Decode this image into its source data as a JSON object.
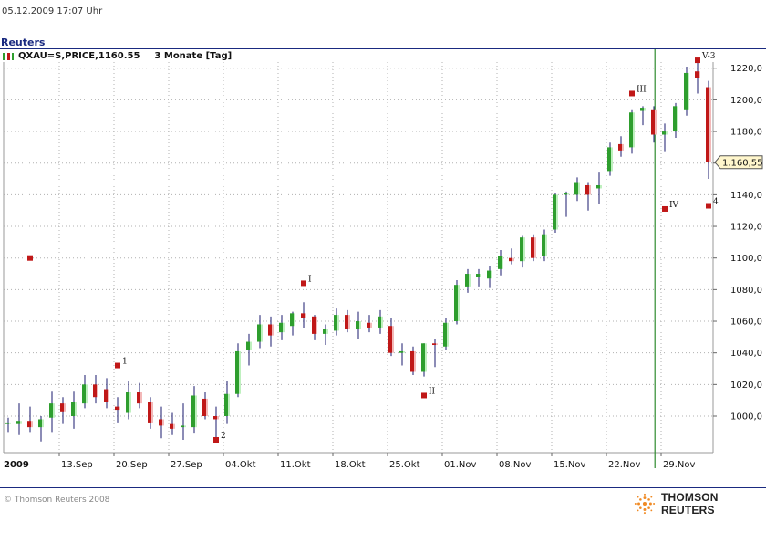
{
  "header": {
    "datetime": "05.12.2009   17:07 Uhr",
    "brand": "Reuters",
    "instrument": "QXAU=S,PRICE,1160.55",
    "period": "3 Monate [Tag]"
  },
  "footer": {
    "copyright": "© Thomson Reuters 2008",
    "logo_text": "THOMSON REUTERS"
  },
  "colors": {
    "up": "#2e9e2e",
    "down": "#c01818",
    "marker": "#c01818",
    "grid": "#b0b0b0",
    "vline": "#2e8b2e",
    "last_label_bg": "#fff6cc"
  },
  "chart_data": {
    "type": "candlestick",
    "title": "",
    "xlabel": "",
    "ylabel": "",
    "ylim": [
      982,
      1230
    ],
    "yticks": [
      1000,
      1020,
      1040,
      1060,
      1080,
      1100,
      1120,
      1140,
      1160,
      1180,
      1200,
      1220
    ],
    "ytick_labels": [
      "1000,0",
      "1020,0",
      "1040,0",
      "1060,0",
      "1080,0",
      "1100,0",
      "1120,0",
      "1140,0",
      "1160,0",
      "1180,0",
      "1200,0",
      "1220,0"
    ],
    "year_label": "2009",
    "x_labels": [
      {
        "label": "13.Sep",
        "i": 5
      },
      {
        "label": "20.Sep",
        "i": 10
      },
      {
        "label": "27.Sep",
        "i": 15
      },
      {
        "label": "04.Okt",
        "i": 20
      },
      {
        "label": "11.Okt",
        "i": 25
      },
      {
        "label": "18.Okt",
        "i": 30
      },
      {
        "label": "25.Okt",
        "i": 35
      },
      {
        "label": "01.Nov",
        "i": 40
      },
      {
        "label": "08.Nov",
        "i": 45
      },
      {
        "label": "15.Nov",
        "i": 50
      },
      {
        "label": "22.Nov",
        "i": 55
      },
      {
        "label": "29.Nov",
        "i": 60
      }
    ],
    "candles": [
      {
        "o": 995,
        "h": 999,
        "l": 990,
        "c": 996
      },
      {
        "o": 995,
        "h": 1008,
        "l": 988,
        "c": 997
      },
      {
        "o": 997,
        "h": 1006,
        "l": 990,
        "c": 993
      },
      {
        "o": 993,
        "h": 1000,
        "l": 984,
        "c": 998
      },
      {
        "o": 999,
        "h": 1016,
        "l": 990,
        "c": 1008
      },
      {
        "o": 1008,
        "h": 1012,
        "l": 995,
        "c": 1003
      },
      {
        "o": 1000,
        "h": 1016,
        "l": 992,
        "c": 1009
      },
      {
        "o": 1008,
        "h": 1026,
        "l": 1005,
        "c": 1020
      },
      {
        "o": 1020,
        "h": 1026,
        "l": 1008,
        "c": 1012
      },
      {
        "o": 1017,
        "h": 1024,
        "l": 1005,
        "c": 1009
      },
      {
        "o": 1006,
        "h": 1012,
        "l": 996,
        "c": 1004
      },
      {
        "o": 1002,
        "h": 1022,
        "l": 998,
        "c": 1015
      },
      {
        "o": 1015,
        "h": 1021,
        "l": 1005,
        "c": 1008
      },
      {
        "o": 1009,
        "h": 1012,
        "l": 992,
        "c": 996
      },
      {
        "o": 998,
        "h": 1006,
        "l": 986,
        "c": 994
      },
      {
        "o": 995,
        "h": 1002,
        "l": 988,
        "c": 992
      },
      {
        "o": 993,
        "h": 1008,
        "l": 985,
        "c": 994
      },
      {
        "o": 993,
        "h": 1019,
        "l": 989,
        "c": 1013
      },
      {
        "o": 1011,
        "h": 1015,
        "l": 998,
        "c": 1000
      },
      {
        "o": 1000,
        "h": 1006,
        "l": 984,
        "c": 998
      },
      {
        "o": 1000,
        "h": 1022,
        "l": 995,
        "c": 1014
      },
      {
        "o": 1014,
        "h": 1046,
        "l": 1012,
        "c": 1041
      },
      {
        "o": 1042,
        "h": 1052,
        "l": 1032,
        "c": 1047
      },
      {
        "o": 1047,
        "h": 1064,
        "l": 1043,
        "c": 1058
      },
      {
        "o": 1058,
        "h": 1063,
        "l": 1044,
        "c": 1051
      },
      {
        "o": 1053,
        "h": 1064,
        "l": 1048,
        "c": 1059
      },
      {
        "o": 1057,
        "h": 1066,
        "l": 1051,
        "c": 1065
      },
      {
        "o": 1065,
        "h": 1072,
        "l": 1056,
        "c": 1062
      },
      {
        "o": 1063,
        "h": 1064,
        "l": 1048,
        "c": 1052
      },
      {
        "o": 1052,
        "h": 1058,
        "l": 1045,
        "c": 1055
      },
      {
        "o": 1054,
        "h": 1068,
        "l": 1051,
        "c": 1064
      },
      {
        "o": 1064,
        "h": 1067,
        "l": 1053,
        "c": 1055
      },
      {
        "o": 1055,
        "h": 1066,
        "l": 1049,
        "c": 1060
      },
      {
        "o": 1059,
        "h": 1064,
        "l": 1053,
        "c": 1056
      },
      {
        "o": 1056,
        "h": 1067,
        "l": 1052,
        "c": 1063
      },
      {
        "o": 1057,
        "h": 1062,
        "l": 1038,
        "c": 1040
      },
      {
        "o": 1040,
        "h": 1046,
        "l": 1032,
        "c": 1041
      },
      {
        "o": 1041,
        "h": 1044,
        "l": 1026,
        "c": 1028
      },
      {
        "o": 1028,
        "h": 1046,
        "l": 1025,
        "c": 1046
      },
      {
        "o": 1046,
        "h": 1049,
        "l": 1031,
        "c": 1045
      },
      {
        "o": 1044,
        "h": 1062,
        "l": 1042,
        "c": 1059
      },
      {
        "o": 1060,
        "h": 1086,
        "l": 1058,
        "c": 1083
      },
      {
        "o": 1082,
        "h": 1093,
        "l": 1078,
        "c": 1090
      },
      {
        "o": 1088,
        "h": 1093,
        "l": 1082,
        "c": 1090
      },
      {
        "o": 1087,
        "h": 1095,
        "l": 1081,
        "c": 1092
      },
      {
        "o": 1093,
        "h": 1105,
        "l": 1089,
        "c": 1101
      },
      {
        "o": 1100,
        "h": 1106,
        "l": 1096,
        "c": 1098
      },
      {
        "o": 1098,
        "h": 1114,
        "l": 1094,
        "c": 1113
      },
      {
        "o": 1113,
        "h": 1115,
        "l": 1098,
        "c": 1100
      },
      {
        "o": 1101,
        "h": 1118,
        "l": 1098,
        "c": 1115
      },
      {
        "o": 1118,
        "h": 1141,
        "l": 1116,
        "c": 1140
      },
      {
        "o": 1140,
        "h": 1142,
        "l": 1126,
        "c": 1141
      },
      {
        "o": 1140,
        "h": 1151,
        "l": 1136,
        "c": 1148
      },
      {
        "o": 1146,
        "h": 1148,
        "l": 1130,
        "c": 1140
      },
      {
        "o": 1144,
        "h": 1154,
        "l": 1134,
        "c": 1146
      },
      {
        "o": 1155,
        "h": 1173,
        "l": 1152,
        "c": 1170
      },
      {
        "o": 1172,
        "h": 1177,
        "l": 1164,
        "c": 1168
      },
      {
        "o": 1170,
        "h": 1194,
        "l": 1166,
        "c": 1192
      },
      {
        "o": 1193,
        "h": 1196,
        "l": 1184,
        "c": 1195
      },
      {
        "o": 1194,
        "h": 1196,
        "l": 1173,
        "c": 1178
      },
      {
        "o": 1178,
        "h": 1185,
        "l": 1167,
        "c": 1180
      },
      {
        "o": 1180,
        "h": 1198,
        "l": 1176,
        "c": 1196
      },
      {
        "o": 1194,
        "h": 1221,
        "l": 1190,
        "c": 1217
      },
      {
        "o": 1218,
        "h": 1225,
        "l": 1204,
        "c": 1214
      },
      {
        "o": 1208,
        "h": 1212,
        "l": 1150,
        "c": 1160.55
      }
    ],
    "markers": [
      {
        "i": 2,
        "v": 1100,
        "label": ""
      },
      {
        "i": 10,
        "v": 1032,
        "label": "1"
      },
      {
        "i": 19,
        "v": 985,
        "label": "2"
      },
      {
        "i": 27,
        "v": 1084,
        "label": "I"
      },
      {
        "i": 38,
        "v": 1013,
        "label": "II"
      },
      {
        "i": 57,
        "v": 1204,
        "label": "III"
      },
      {
        "i": 60,
        "v": 1131,
        "label": "IV"
      },
      {
        "i": 63,
        "v": 1225,
        "label": "V-3"
      },
      {
        "i": 64,
        "v": 1133,
        "label": "4"
      }
    ],
    "vertical_line_i": 59.1,
    "last_value": 1160.55,
    "last_label": "1.160,55"
  }
}
